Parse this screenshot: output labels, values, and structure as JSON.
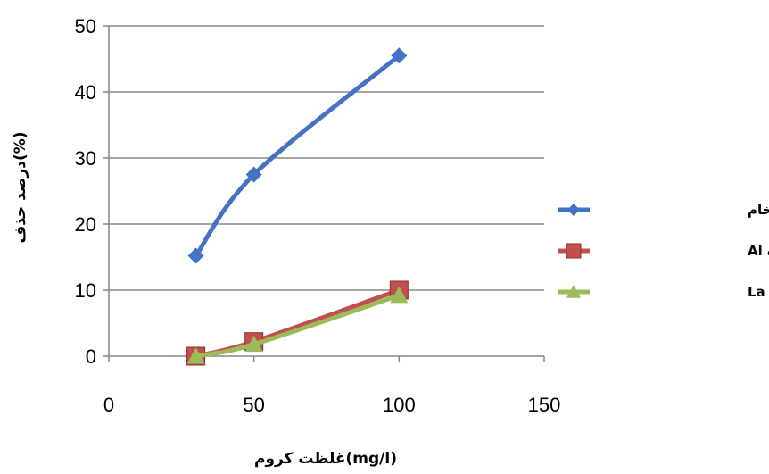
{
  "chart_data": {
    "type": "line",
    "xlabel": "غلظت کروم(mg/l)",
    "ylabel": "درصد حذف(%)",
    "xlim": [
      0,
      150
    ],
    "ylim": [
      0,
      50
    ],
    "x_ticks": [
      "0",
      "50",
      "100",
      "150"
    ],
    "y_ticks": [
      "0",
      "10",
      "20",
      "30",
      "40",
      "50"
    ],
    "grid": "horizontal",
    "legend_position": "right",
    "series": [
      {
        "name": "زئولیت خام",
        "color": "#4472C4",
        "marker": "diamond",
        "x": [
          30,
          50,
          100
        ],
        "y": [
          15.2,
          27.5,
          45.5
        ]
      },
      {
        "name": "زئولیت فعال شده Al",
        "color": "#C0504D",
        "marker": "square",
        "x": [
          30,
          50,
          100
        ],
        "y": [
          0,
          2.2,
          10
        ]
      },
      {
        "name": "زئولیت فعال شده با La",
        "color": "#9BBB59",
        "marker": "triangle",
        "x": [
          30,
          50,
          100
        ],
        "y": [
          0,
          1.8,
          9.2
        ]
      }
    ]
  }
}
